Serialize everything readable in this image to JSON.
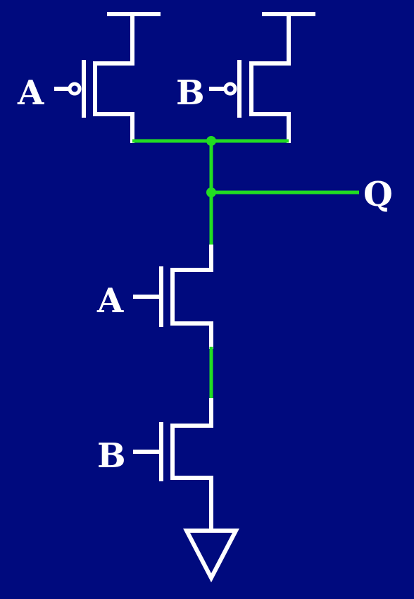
{
  "diagram": {
    "labels": {
      "pmos_a_input": "A",
      "pmos_b_input": "B",
      "output": "Q",
      "nmos_a_input": "A",
      "nmos_b_input": "B"
    },
    "colors": {
      "background": "#000a7e",
      "device_wire": "#ffffff",
      "node_wire": "#22dd22"
    },
    "components": {
      "pmos_count": 2,
      "nmos_count": 2,
      "supply": "vdd-rail",
      "ground": "ground-triangle"
    }
  }
}
